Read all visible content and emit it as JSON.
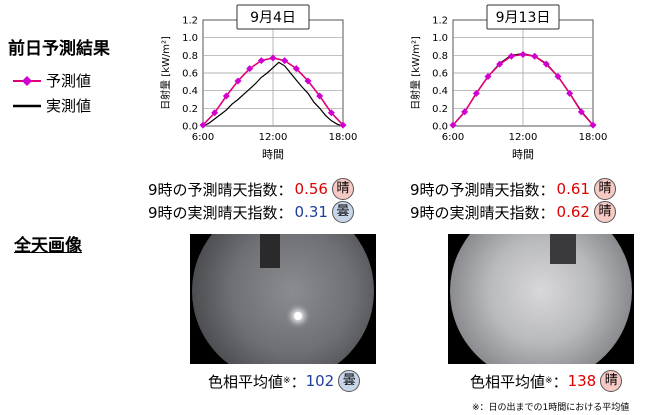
{
  "headings": {
    "forecast": "前日予測結果",
    "allsky": "全天画像"
  },
  "legend": {
    "predicted": "予測値",
    "measured": "実測値"
  },
  "axes": {
    "ylabel": "日射量",
    "yunit": "[kW/m²]",
    "xlabel": "時間",
    "yticks": [
      "0.0",
      "0.2",
      "0.4",
      "0.6",
      "0.8",
      "1.0",
      "1.2"
    ],
    "xticks": [
      "6:00",
      "12:00",
      "18:00"
    ]
  },
  "panels": [
    {
      "date": "9月4日",
      "pred_label": "9時の予測晴天指数：",
      "pred_value": "0.56",
      "pred_weather": "晴",
      "meas_label": "9時の実測晴天指数：",
      "meas_value": "0.31",
      "meas_weather": "曇",
      "hue_label": "色相平均値",
      "hue_mark": "※",
      "hue_sep": "：",
      "hue_value": "102",
      "hue_weather": "曇"
    },
    {
      "date": "9月13日",
      "pred_label": "9時の予測晴天指数：",
      "pred_value": "0.61",
      "pred_weather": "晴",
      "meas_label": "9時の実測晴天指数：",
      "meas_value": "0.62",
      "meas_weather": "晴",
      "hue_label": "色相平均値",
      "hue_mark": "※",
      "hue_sep": "：",
      "hue_value": "138",
      "hue_weather": "晴"
    }
  ],
  "footnote": "※：日の出までの1時間における平均値",
  "colors": {
    "predicted": "#e0007a",
    "predicted_marker": "#d000d0",
    "measured": "#000000",
    "good": "#e00000",
    "bad": "#1f3e9c"
  },
  "chart_data": [
    {
      "type": "line",
      "title": "9月4日",
      "xlabel": "時間",
      "ylabel": "日射量 [kW/m²]",
      "xlim": [
        6,
        18
      ],
      "ylim": [
        0,
        1.2
      ],
      "grid": true,
      "series": [
        {
          "name": "予測値",
          "x": [
            6,
            7,
            8,
            9,
            10,
            11,
            12,
            13,
            14,
            15,
            16,
            17,
            18
          ],
          "y": [
            0.01,
            0.15,
            0.34,
            0.51,
            0.65,
            0.74,
            0.77,
            0.74,
            0.65,
            0.51,
            0.34,
            0.15,
            0.01
          ]
        },
        {
          "name": "実測値",
          "x": [
            6,
            6.5,
            7,
            7.5,
            8,
            8.5,
            9,
            9.5,
            10,
            10.5,
            11,
            11.5,
            12,
            12.5,
            13,
            13.5,
            14,
            14.5,
            15,
            15.5,
            16,
            16.5,
            17,
            17.5,
            18
          ],
          "y": [
            0.0,
            0.03,
            0.08,
            0.13,
            0.18,
            0.25,
            0.3,
            0.36,
            0.42,
            0.48,
            0.55,
            0.6,
            0.66,
            0.72,
            0.68,
            0.6,
            0.52,
            0.44,
            0.37,
            0.27,
            0.2,
            0.12,
            0.06,
            0.02,
            0.0
          ]
        }
      ]
    },
    {
      "type": "line",
      "title": "9月13日",
      "xlabel": "時間",
      "ylabel": "日射量 [kW/m²]",
      "xlim": [
        6,
        18
      ],
      "ylim": [
        0,
        1.2
      ],
      "grid": true,
      "series": [
        {
          "name": "予測値",
          "x": [
            6,
            7,
            8,
            9,
            10,
            11,
            12,
            13,
            14,
            15,
            16,
            17,
            18
          ],
          "y": [
            0.01,
            0.16,
            0.37,
            0.56,
            0.7,
            0.79,
            0.81,
            0.79,
            0.7,
            0.56,
            0.37,
            0.16,
            0.01
          ]
        },
        {
          "name": "実測値",
          "x": [
            6,
            7,
            8,
            9,
            10,
            11,
            12,
            13,
            14,
            15,
            16,
            17,
            18
          ],
          "y": [
            0.01,
            0.16,
            0.37,
            0.56,
            0.71,
            0.8,
            0.82,
            0.79,
            0.71,
            0.56,
            0.37,
            0.17,
            0.01
          ]
        }
      ]
    }
  ]
}
